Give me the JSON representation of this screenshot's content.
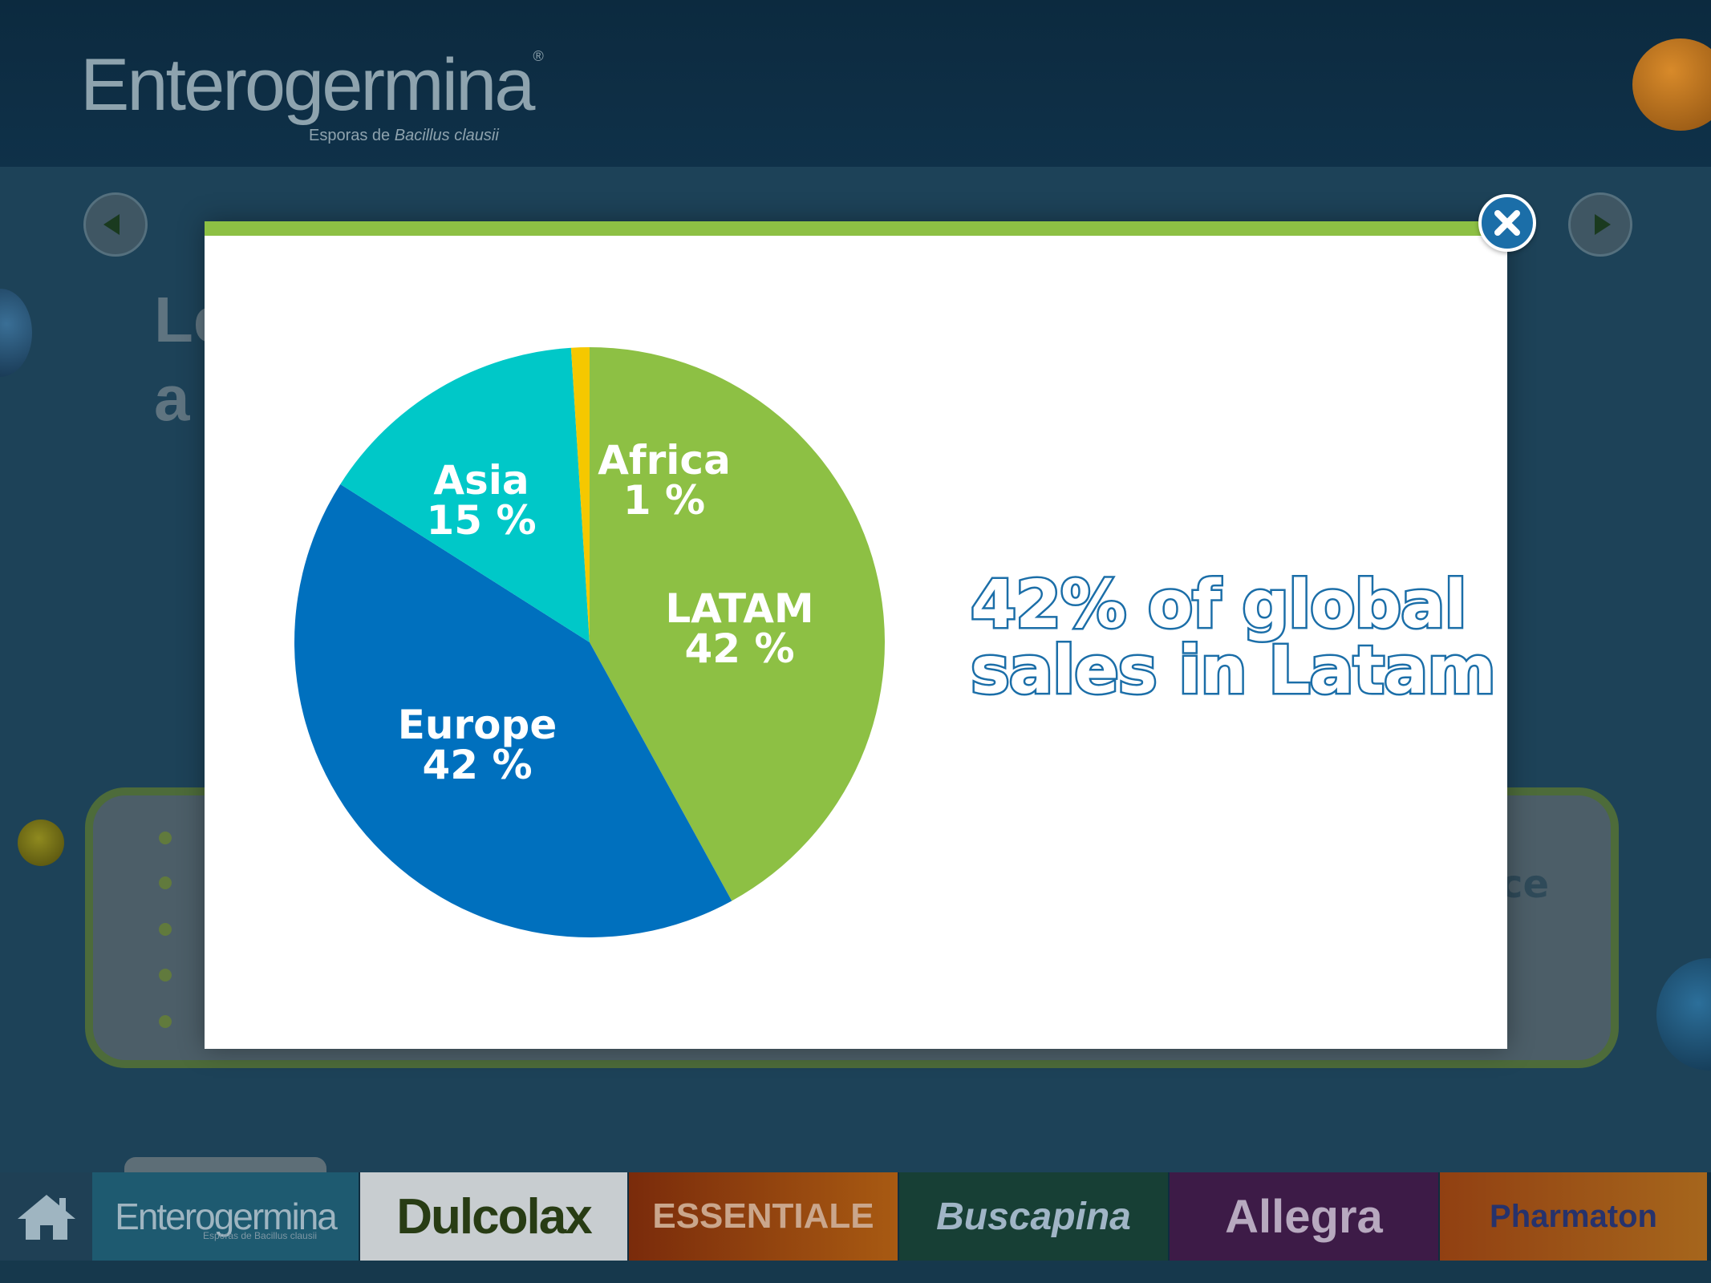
{
  "app": {
    "logo_name": "Enterogermina",
    "logo_reg": "®",
    "logo_sub_prefix": "Esporas de ",
    "logo_sub_italic": "Bacillus clausii"
  },
  "background": {
    "heading_line1": "Le",
    "heading_line2": "a",
    "panel_right_fragment": "ce"
  },
  "modal": {
    "headline_line1": "42% of global",
    "headline_line2": "sales in Latam",
    "accent_color": "#8dc044",
    "headline_color": "#1b6ea8"
  },
  "chart_data": {
    "type": "pie",
    "slices": [
      {
        "name": "LATAM",
        "value": 42,
        "label": "42 %",
        "color": "#8dc044"
      },
      {
        "name": "Europe",
        "value": 42,
        "label": "42 %",
        "color": "#0070be"
      },
      {
        "name": "Asia",
        "value": 15,
        "label": "15 %",
        "color": "#00c8c8"
      },
      {
        "name": "Africa",
        "value": 1,
        "label": "1 %",
        "color": "#f5c800"
      }
    ]
  },
  "brands": [
    {
      "name": "Enterogermina",
      "sub": "Esporas de Bacillus clausii"
    },
    {
      "name": "Dulcolax"
    },
    {
      "name": "ESSENTIALE"
    },
    {
      "name": "Buscapina"
    },
    {
      "name": "Allegra"
    },
    {
      "name": "Pharmaton"
    }
  ]
}
